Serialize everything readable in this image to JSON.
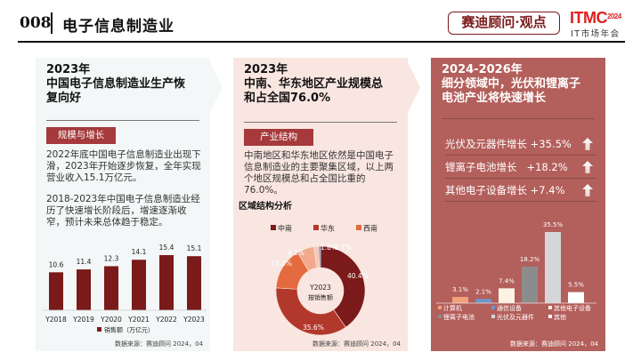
{
  "header": {
    "page_number": "008",
    "title": "电子信息制造业",
    "brand_label": "赛迪顾问·观点",
    "logo_text": "ITMC",
    "logo_year": "2024",
    "logo_subtitle": "IT市场年会"
  },
  "panel1": {
    "title_lines": [
      "2023年",
      "中国电子信息制造业生产恢",
      "复向好"
    ],
    "tag": "规模与增长",
    "paragraph1": "2022年底中国电子信息制造业出现下滑，2023年开始逐步恢复，全年实现营业收入15.1万亿元。",
    "paragraph2": "2018-2023年中国电子信息制造业经历了快速增长阶段后，增速逐渐收窄，预计未来总体趋于稳定。",
    "source": "数据来源：赛迪顾问 2024，04"
  },
  "panel2": {
    "title_lines": [
      "2023年",
      "中南、华东地区产业规模总",
      "和占全国76.0%"
    ],
    "tag": "产业结构",
    "paragraph": "中南地区和华东地区依然是中国电子信息制造业的主要聚集区域，以上两个地区规模总和占全国比重的76.0%。",
    "chart_heading": "区域结构分析",
    "source": "数据来源：赛迪顾问 2024，04"
  },
  "panel3": {
    "title_lines": [
      "2024-2026年",
      "细分领域中，光伏和锂离子",
      "电池产业将快速增长"
    ],
    "growth_items": [
      {
        "label": "光伏及元器件增长 +35.5%",
        "icon": "arrow-up-icon"
      },
      {
        "label": "锂离子电池增长   +18.2%",
        "icon": "arrow-up-icon"
      },
      {
        "label": "其他电子设备增长 +7.4%",
        "icon": "arrow-up-icon"
      }
    ],
    "source": "数据来源：赛迪顾问 2024，04"
  },
  "chart_data": [
    {
      "type": "bar",
      "title": "",
      "categories": [
        "Y2018",
        "Y2019",
        "Y2020",
        "Y2021",
        "Y2022",
        "Y2023"
      ],
      "series": [
        {
          "name": "销售额（万亿元）",
          "values": [
            10.6,
            11.4,
            12.3,
            14.1,
            15.4,
            15.1
          ],
          "color": "#7a1a1a"
        }
      ],
      "data_labels": [
        "10.6",
        "11.4",
        "12.3",
        "14.1",
        "15.4",
        "15.1"
      ],
      "legend": "bottom",
      "ylim": [
        0,
        17
      ],
      "grid": false
    },
    {
      "type": "pie",
      "variant": "donut",
      "center_label_lines": [
        "Y2023",
        "按销售额"
      ],
      "legend_entries": [
        "中南",
        "华东",
        "西南"
      ],
      "legend": "top",
      "slices": [
        {
          "label": "中南",
          "value": 40.4,
          "display": "40.4%",
          "color": "#7a1a1a"
        },
        {
          "label": "华东",
          "value": 35.6,
          "display": "35.6%",
          "color": "#b3382c"
        },
        {
          "label": "西南",
          "value": 15.4,
          "display": "15.4%",
          "color": "#e46a3f"
        },
        {
          "label": "",
          "value": 6.1,
          "display": "6.1%",
          "color": "#f2a98c"
        },
        {
          "label": "",
          "value": 1.8,
          "display": "1.8%",
          "color": "#f7c9b6"
        },
        {
          "label": "",
          "value": 0.7,
          "display": "0.7%",
          "color": "#6f95c9"
        }
      ]
    },
    {
      "type": "bar",
      "title": "",
      "categories": [
        "计算机",
        "通信设备",
        "其他电子设备",
        "锂离子电池",
        "光伏及元器件",
        "其他"
      ],
      "values": [
        3.1,
        2.1,
        7.4,
        18.2,
        35.5,
        5.5
      ],
      "data_labels": [
        "3.1%",
        "2.1%",
        "7.4%",
        "18.2%",
        "35.5%",
        "5.5%"
      ],
      "colors": [
        "#f4a07c",
        "#6f95c9",
        "#fdf3e3",
        "#8c8c8c",
        "#d4d6d9",
        "#ffffff"
      ],
      "legend": "bottom",
      "ylim": [
        0,
        40
      ],
      "grid": false
    }
  ]
}
